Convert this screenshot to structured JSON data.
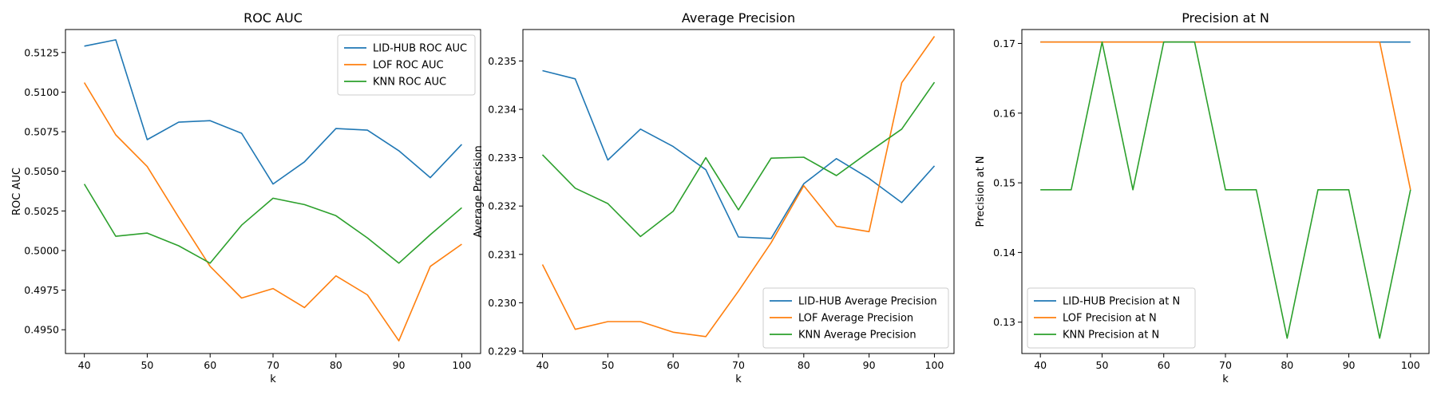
{
  "chart_data": [
    {
      "type": "line",
      "title": "ROC AUC",
      "xlabel": "k",
      "ylabel": "ROC AUC",
      "x": [
        40,
        45,
        50,
        55,
        60,
        65,
        70,
        75,
        80,
        85,
        90,
        95,
        100
      ],
      "xlim": [
        37,
        103
      ],
      "ylim": [
        0.4935,
        0.51395
      ],
      "xticks": [
        40,
        50,
        60,
        70,
        80,
        90,
        100
      ],
      "xtick_labels": [
        "40",
        "50",
        "60",
        "70",
        "80",
        "90",
        "100"
      ],
      "yticks": [
        0.495,
        0.4975,
        0.5,
        0.5025,
        0.505,
        0.5075,
        0.51,
        0.5125
      ],
      "ytick_labels": [
        "0.4950",
        "0.4975",
        "0.5000",
        "0.5025",
        "0.5050",
        "0.5075",
        "0.5100",
        "0.5125"
      ],
      "grid": false,
      "legend_position": "top-right",
      "series": [
        {
          "name": "LID-HUB ROC AUC",
          "color": "#1f77b4",
          "values": [
            0.5129,
            0.5133,
            0.507,
            0.5081,
            0.5082,
            0.5074,
            0.5042,
            0.5056,
            0.5077,
            0.5076,
            0.5063,
            0.5046,
            0.5067
          ]
        },
        {
          "name": "LOF ROC AUC",
          "color": "#ff7f0e",
          "values": [
            0.5106,
            0.5073,
            0.5053,
            0.5021,
            0.499,
            0.497,
            0.4976,
            0.4964,
            0.4984,
            0.4972,
            0.4943,
            0.499,
            0.5004
          ]
        },
        {
          "name": "KNN ROC AUC",
          "color": "#2ca02c",
          "values": [
            0.5042,
            0.5009,
            0.5011,
            0.5003,
            0.4992,
            0.5016,
            0.5033,
            0.5029,
            0.5022,
            0.5008,
            0.4992,
            0.501,
            0.5027
          ]
        }
      ]
    },
    {
      "type": "line",
      "title": "Average Precision",
      "xlabel": "k",
      "ylabel": "Average Precision",
      "x": [
        40,
        45,
        50,
        55,
        60,
        65,
        70,
        75,
        80,
        85,
        90,
        95,
        100
      ],
      "xlim": [
        37,
        103
      ],
      "ylim": [
        0.22895,
        0.23565
      ],
      "xticks": [
        40,
        50,
        60,
        70,
        80,
        90,
        100
      ],
      "xtick_labels": [
        "40",
        "50",
        "60",
        "70",
        "80",
        "90",
        "100"
      ],
      "yticks": [
        0.229,
        0.23,
        0.231,
        0.232,
        0.233,
        0.234,
        0.235
      ],
      "ytick_labels": [
        "0.229",
        "0.230",
        "0.231",
        "0.232",
        "0.233",
        "0.234",
        "0.235"
      ],
      "grid": false,
      "legend_position": "bottom-right",
      "series": [
        {
          "name": "LID-HUB Average Precision",
          "color": "#1f77b4",
          "values": [
            0.2348,
            0.23463,
            0.23295,
            0.23359,
            0.23323,
            0.23275,
            0.23136,
            0.23133,
            0.23246,
            0.23298,
            0.23257,
            0.23207,
            0.23283
          ]
        },
        {
          "name": "LOF Average Precision",
          "color": "#ff7f0e",
          "values": [
            0.23079,
            0.22945,
            0.22961,
            0.22961,
            0.22939,
            0.2293,
            0.23024,
            0.23124,
            0.23242,
            0.23158,
            0.23147,
            0.23455,
            0.23551
          ]
        },
        {
          "name": "KNN Average Precision",
          "color": "#2ca02c",
          "values": [
            0.23306,
            0.23237,
            0.23205,
            0.23137,
            0.23189,
            0.233,
            0.23192,
            0.23299,
            0.23301,
            0.23263,
            0.23312,
            0.23359,
            0.23456
          ]
        }
      ]
    },
    {
      "type": "line",
      "title": "Precision at N",
      "xlabel": "k",
      "ylabel": "Precision at N",
      "x": [
        40,
        45,
        50,
        55,
        60,
        65,
        70,
        75,
        80,
        85,
        90,
        95,
        100
      ],
      "xlim": [
        37,
        103
      ],
      "ylim": [
        0.1255,
        0.172
      ],
      "xticks": [
        40,
        50,
        60,
        70,
        80,
        90,
        100
      ],
      "xtick_labels": [
        "40",
        "50",
        "60",
        "70",
        "80",
        "90",
        "100"
      ],
      "yticks": [
        0.13,
        0.14,
        0.15,
        0.16,
        0.17
      ],
      "ytick_labels": [
        "0.13",
        "0.14",
        "0.15",
        "0.16",
        "0.17"
      ],
      "grid": false,
      "legend_position": "bottom-left",
      "series": [
        {
          "name": "LID-HUB Precision at N",
          "color": "#1f77b4",
          "values": [
            0.1702,
            0.1702,
            0.1702,
            0.1702,
            0.1702,
            0.1702,
            0.1702,
            0.1702,
            0.1702,
            0.1702,
            0.1702,
            0.1702,
            0.1702
          ]
        },
        {
          "name": "LOF Precision at N",
          "color": "#ff7f0e",
          "values": [
            0.1702,
            0.1702,
            0.1702,
            0.1702,
            0.1702,
            0.1702,
            0.1702,
            0.1702,
            0.1702,
            0.1702,
            0.1702,
            0.1702,
            0.149
          ]
        },
        {
          "name": "KNN Precision at N",
          "color": "#2ca02c",
          "values": [
            0.149,
            0.149,
            0.1702,
            0.149,
            0.1702,
            0.1702,
            0.149,
            0.149,
            0.1277,
            0.149,
            0.149,
            0.1277,
            0.149
          ]
        }
      ]
    }
  ]
}
